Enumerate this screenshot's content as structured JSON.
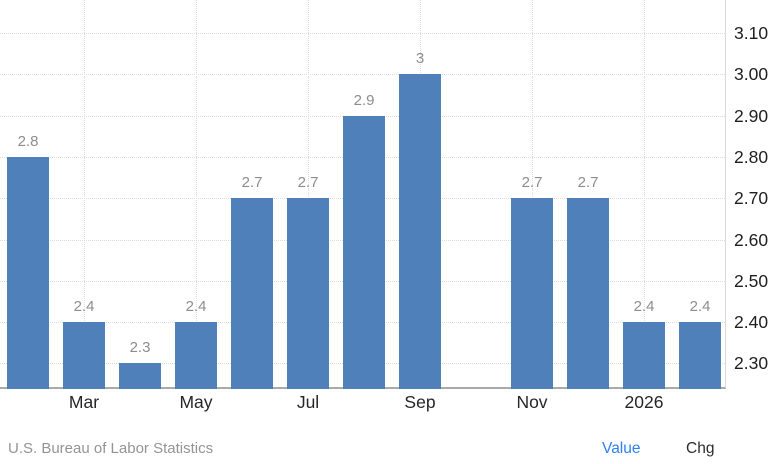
{
  "chart_data": {
    "type": "bar",
    "n_slots": 13,
    "values": [
      2.8,
      2.4,
      2.3,
      2.4,
      2.7,
      2.7,
      2.9,
      3.0,
      null,
      2.7,
      2.7,
      2.4,
      2.4
    ],
    "bar_labels": [
      "2.8",
      "2.4",
      "2.3",
      "2.4",
      "2.7",
      "2.7",
      "2.9",
      "3",
      "",
      "2.7",
      "2.7",
      "2.4",
      "2.4"
    ],
    "x_tick_labels": [
      {
        "slot": 1,
        "label": "Mar"
      },
      {
        "slot": 3,
        "label": "May"
      },
      {
        "slot": 5,
        "label": "Jul"
      },
      {
        "slot": 7,
        "label": "Sep"
      },
      {
        "slot": 9,
        "label": "Nov"
      },
      {
        "slot": 11,
        "label": "2026"
      }
    ],
    "y_ticks": [
      "2.30",
      "2.40",
      "2.50",
      "2.60",
      "2.70",
      "2.80",
      "2.90",
      "3.00",
      "3.10"
    ],
    "ylim": [
      2.238,
      3.18
    ],
    "grid": "dotted",
    "legend_position": "none",
    "title": "",
    "xlabel": "",
    "ylabel": "",
    "bar_color": "#4f80ba"
  },
  "footer": {
    "source": "U.S. Bureau of Labor Statistics",
    "value_label": "Value",
    "chg_label": "Chg"
  },
  "colors": {
    "bar": "#4f80ba",
    "value_link": "#2e80f2",
    "chg_link": "#2b2b2b",
    "bar_value_label": "#8d8d8d",
    "axis_text": "#1f1f1f",
    "source_text": "#949494",
    "gridline": "#dcdcdc"
  }
}
